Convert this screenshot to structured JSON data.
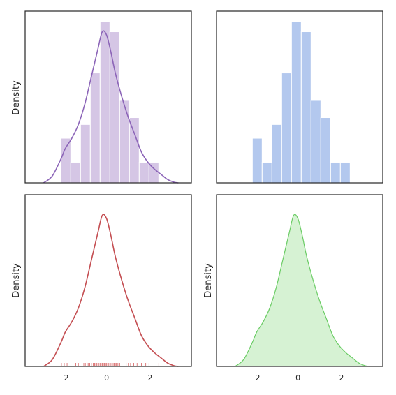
{
  "chart_data": [
    {
      "type": "bar",
      "subtype": "histogram-with-kde",
      "position": "top-left",
      "color": "#9467bd",
      "title": "",
      "xlabel": "",
      "ylabel": "Density",
      "xlim": [
        -3.75,
        3.9
      ],
      "ylim": [
        0,
        0.5
      ],
      "x_ticks_visible": false,
      "y_ticks_visible": false,
      "grid": false,
      "histogram": {
        "bin_edges": [
          -2.1,
          -1.65,
          -1.2,
          -0.75,
          -0.3,
          0.15,
          0.6,
          1.05,
          1.5,
          1.95,
          2.4
        ],
        "heights": [
          0.13,
          0.06,
          0.17,
          0.32,
          0.47,
          0.44,
          0.24,
          0.19,
          0.06,
          0.06
        ]
      },
      "kde": {
        "x": [
          -2.9,
          -2.5,
          -2.1,
          -1.9,
          -1.6,
          -1.3,
          -1.0,
          -0.7,
          -0.4,
          -0.2,
          0.0,
          0.2,
          0.4,
          0.7,
          1.0,
          1.3,
          1.6,
          1.9,
          2.2,
          2.5,
          2.8,
          3.1,
          3.3
        ],
        "y": [
          0.0,
          0.02,
          0.07,
          0.1,
          0.13,
          0.17,
          0.23,
          0.31,
          0.39,
          0.44,
          0.43,
          0.38,
          0.32,
          0.25,
          0.19,
          0.14,
          0.09,
          0.06,
          0.04,
          0.025,
          0.01,
          0.002,
          0.0
        ]
      }
    },
    {
      "type": "bar",
      "subtype": "histogram",
      "position": "top-right",
      "color": "#4c72b0",
      "title": "",
      "xlabel": "",
      "ylabel": "",
      "xlim": [
        -3.75,
        3.9
      ],
      "ylim": [
        0,
        0.5
      ],
      "x_ticks_visible": false,
      "y_ticks_visible": false,
      "grid": false,
      "histogram": {
        "bin_edges": [
          -2.1,
          -1.65,
          -1.2,
          -0.75,
          -0.3,
          0.15,
          0.6,
          1.05,
          1.5,
          1.95,
          2.4
        ],
        "heights": [
          0.13,
          0.06,
          0.17,
          0.32,
          0.47,
          0.44,
          0.24,
          0.19,
          0.06,
          0.06
        ]
      }
    },
    {
      "type": "line",
      "subtype": "kde-with-rug",
      "position": "bottom-left",
      "color": "#c44e52",
      "title": "",
      "xlabel": "",
      "ylabel": "Density",
      "xlim": [
        -3.75,
        3.9
      ],
      "ylim": [
        0,
        0.5
      ],
      "x_ticks": [
        -2,
        0,
        2
      ],
      "y_ticks_visible": false,
      "grid": false,
      "kde": {
        "x": [
          -2.9,
          -2.5,
          -2.1,
          -1.9,
          -1.6,
          -1.3,
          -1.0,
          -0.7,
          -0.4,
          -0.2,
          0.0,
          0.2,
          0.4,
          0.7,
          1.0,
          1.3,
          1.6,
          1.9,
          2.2,
          2.5,
          2.8,
          3.1,
          3.3
        ],
        "y": [
          0.0,
          0.02,
          0.07,
          0.1,
          0.13,
          0.17,
          0.23,
          0.31,
          0.39,
          0.44,
          0.43,
          0.38,
          0.32,
          0.25,
          0.19,
          0.14,
          0.09,
          0.06,
          0.04,
          0.025,
          0.01,
          0.002,
          0.0
        ]
      },
      "rug": [
        -2.08,
        -1.95,
        -1.82,
        -1.55,
        -1.42,
        -1.3,
        -1.05,
        -0.98,
        -0.9,
        -0.85,
        -0.78,
        -0.7,
        -0.62,
        -0.55,
        -0.5,
        -0.45,
        -0.4,
        -0.35,
        -0.3,
        -0.25,
        -0.2,
        -0.15,
        -0.1,
        -0.05,
        0.0,
        0.05,
        0.1,
        0.15,
        0.2,
        0.25,
        0.3,
        0.35,
        0.4,
        0.45,
        0.52,
        0.6,
        0.7,
        0.8,
        0.9,
        1.0,
        1.1,
        1.25,
        1.4,
        1.6,
        1.8,
        1.95,
        2.4
      ]
    },
    {
      "type": "area",
      "subtype": "kde-shaded",
      "position": "bottom-right",
      "color": "#55a868",
      "line_color": "#6acc64",
      "fill_color": "#d6f2d3",
      "title": "",
      "xlabel": "",
      "ylabel": "Density",
      "xlim": [
        -3.75,
        3.9
      ],
      "ylim": [
        0,
        0.5
      ],
      "x_ticks": [
        -2,
        0,
        2
      ],
      "y_ticks_visible": false,
      "grid": false,
      "kde": {
        "x": [
          -2.9,
          -2.5,
          -2.1,
          -1.9,
          -1.6,
          -1.3,
          -1.0,
          -0.7,
          -0.4,
          -0.2,
          0.0,
          0.2,
          0.4,
          0.7,
          1.0,
          1.3,
          1.6,
          1.9,
          2.2,
          2.5,
          2.8,
          3.1,
          3.3
        ],
        "y": [
          0.0,
          0.02,
          0.07,
          0.1,
          0.13,
          0.17,
          0.23,
          0.31,
          0.39,
          0.44,
          0.43,
          0.38,
          0.32,
          0.25,
          0.19,
          0.14,
          0.09,
          0.06,
          0.04,
          0.025,
          0.01,
          0.002,
          0.0
        ]
      }
    }
  ],
  "tick_labels": [
    "−2",
    "0",
    "2"
  ]
}
